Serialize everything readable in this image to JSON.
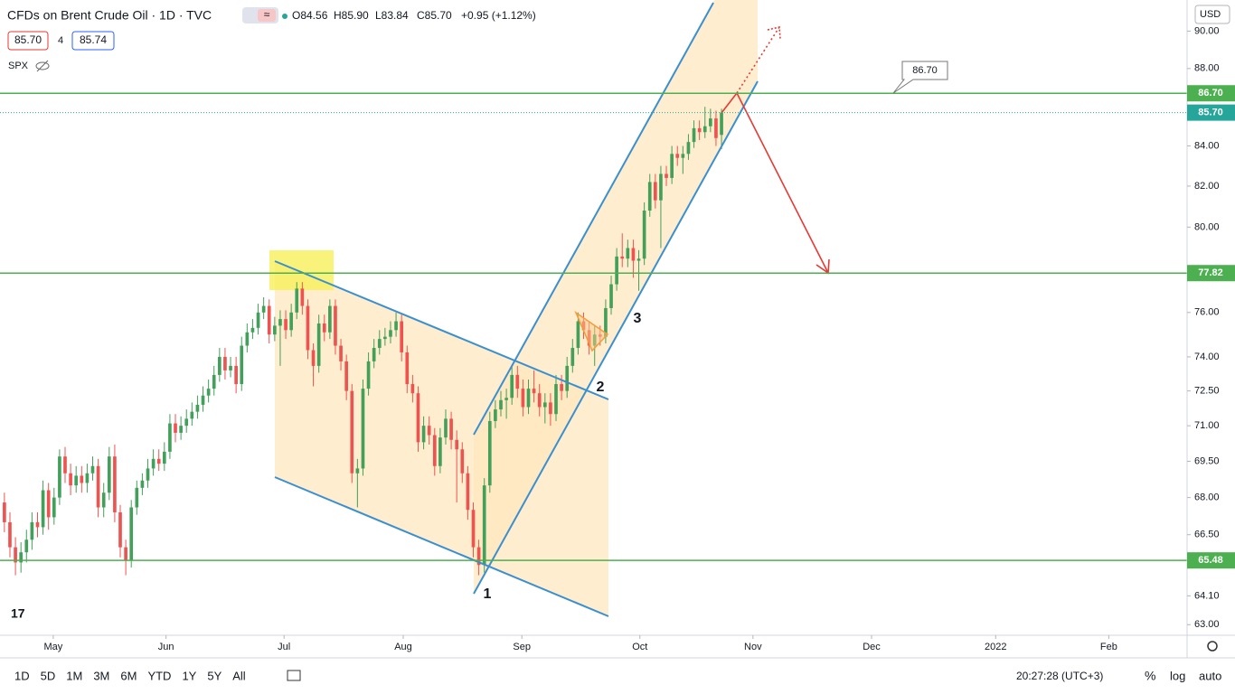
{
  "header": {
    "title": "CFDs on Brent Crude Oil · 1D · TVC",
    "open": "O84.56",
    "high": "H85.90",
    "low": "L83.84",
    "close": "C85.70",
    "change": "+0.95 (+1.12%)",
    "sell": "85.70",
    "spread": "4",
    "buy": "85.74",
    "compare": "SPX",
    "currency": "USD"
  },
  "toolbar": {
    "ranges": [
      "1D",
      "5D",
      "1M",
      "3M",
      "6M",
      "YTD",
      "1Y",
      "5Y",
      "All"
    ],
    "clock": "20:27:28 (UTC+3)",
    "percent": "%",
    "log": "log",
    "auto": "auto"
  },
  "chart_data": {
    "type": "candlestick",
    "log_scale": true,
    "up_color": "#43a05a",
    "down_color": "#ef5350",
    "open": [
      67.8,
      67.0,
      66.0,
      65.4,
      65.8,
      66.3,
      67.0,
      66.8,
      68.3,
      67.2,
      68.0,
      69.7,
      69.0,
      68.5,
      68.9,
      68.6,
      69.0,
      69.3,
      67.6,
      68.2,
      69.7,
      67.4,
      66.0,
      65.5,
      67.6,
      68.4,
      68.7,
      69.2,
      69.6,
      69.4,
      69.9,
      71.1,
      70.7,
      71.0,
      71.3,
      71.6,
      71.9,
      72.3,
      72.6,
      73.2,
      74.0,
      73.4,
      73.6,
      72.8,
      74.5,
      75.1,
      75.3,
      76.0,
      76.3,
      75.0,
      75.4,
      75.7,
      75.2,
      76.0,
      77.1,
      76.3,
      74.3,
      73.6,
      75.5,
      75.1,
      76.3,
      74.5,
      73.8,
      72.5,
      69.0,
      69.2,
      72.6,
      73.8,
      74.4,
      74.8,
      74.9,
      75.2,
      75.6,
      74.2,
      72.8,
      72.4,
      70.3,
      71.0,
      70.6,
      69.3,
      70.5,
      71.3,
      70.4,
      70.0,
      69.0,
      67.5,
      66.0,
      65.3,
      68.5,
      71.2,
      71.7,
      72.1,
      72.2,
      73.2,
      72.6,
      71.8,
      72.6,
      72.4,
      71.8,
      72.0,
      71.5,
      72.8,
      72.5,
      73.6,
      74.4,
      75.6,
      75.2,
      74.5,
      75.0,
      74.9,
      76.2,
      77.3,
      78.6,
      78.5,
      79.0,
      78.4,
      78.5,
      80.8,
      82.2,
      81.3,
      82.6,
      82.4,
      83.6,
      83.4,
      83.6,
      84.2,
      84.9,
      84.7,
      85.0,
      85.4,
      84.56
    ],
    "high": [
      68.2,
      67.4,
      66.4,
      66.2,
      66.7,
      67.4,
      67.4,
      68.7,
      68.6,
      68.4,
      70.0,
      70.1,
      69.4,
      69.3,
      69.3,
      69.4,
      69.7,
      69.6,
      68.6,
      70.1,
      70.2,
      67.7,
      66.3,
      67.9,
      68.7,
      69.0,
      69.6,
      70.0,
      70.0,
      70.3,
      71.5,
      71.5,
      71.4,
      71.7,
      72.0,
      72.3,
      72.7,
      73.0,
      73.6,
      74.4,
      74.4,
      74.0,
      74.0,
      74.9,
      75.5,
      75.7,
      76.4,
      76.7,
      76.6,
      75.8,
      76.1,
      76.1,
      76.4,
      77.4,
      77.4,
      76.6,
      74.6,
      75.9,
      75.9,
      76.6,
      76.6,
      74.8,
      74.1,
      72.8,
      69.6,
      73.0,
      74.2,
      74.8,
      75.2,
      75.3,
      75.6,
      76.0,
      75.9,
      74.5,
      73.2,
      72.7,
      71.4,
      71.4,
      70.9,
      70.9,
      71.7,
      71.6,
      70.8,
      70.3,
      69.3,
      67.8,
      66.3,
      68.8,
      71.6,
      72.1,
      72.5,
      72.6,
      73.6,
      73.6,
      73.0,
      73.0,
      73.4,
      72.8,
      72.4,
      72.4,
      73.2,
      73.2,
      74.0,
      74.8,
      76.0,
      76.0,
      75.6,
      75.4,
      75.4,
      76.6,
      77.7,
      79.0,
      79.7,
      79.4,
      79.4,
      78.9,
      81.2,
      82.6,
      82.6,
      83.0,
      83.0,
      84.0,
      84.0,
      84.0,
      84.6,
      85.3,
      85.3,
      86.0,
      85.9,
      85.8,
      85.9
    ],
    "low": [
      66.6,
      65.6,
      64.9,
      65.0,
      65.4,
      65.9,
      66.4,
      66.5,
      66.7,
      66.9,
      67.7,
      68.6,
      68.1,
      68.2,
      68.2,
      68.2,
      68.7,
      67.2,
      67.2,
      67.9,
      67.0,
      65.6,
      64.9,
      65.2,
      67.3,
      68.1,
      68.4,
      68.9,
      69.1,
      69.1,
      69.6,
      70.3,
      70.4,
      70.7,
      71.0,
      71.3,
      71.6,
      72.0,
      72.3,
      72.9,
      73.0,
      73.1,
      72.4,
      72.5,
      74.2,
      74.8,
      75.0,
      75.7,
      74.6,
      74.7,
      73.6,
      74.8,
      74.9,
      75.7,
      75.9,
      73.9,
      72.7,
      73.3,
      74.7,
      74.8,
      74.1,
      73.4,
      72.1,
      68.6,
      67.6,
      68.9,
      72.3,
      73.5,
      74.1,
      74.5,
      74.6,
      74.9,
      73.8,
      72.4,
      72.0,
      69.9,
      70.0,
      70.2,
      68.9,
      69.0,
      70.2,
      70.0,
      67.8,
      68.6,
      67.1,
      65.6,
      64.9,
      65.0,
      68.2,
      70.9,
      71.4,
      71.3,
      71.9,
      72.2,
      71.4,
      71.5,
      72.0,
      71.4,
      71.1,
      71.0,
      71.2,
      72.1,
      72.2,
      73.3,
      74.1,
      74.8,
      74.1,
      73.6,
      74.5,
      74.6,
      75.9,
      77.0,
      78.1,
      78.1,
      77.6,
      77.0,
      78.2,
      80.5,
      80.9,
      79.0,
      82.0,
      82.1,
      83.0,
      82.6,
      83.3,
      83.9,
      84.3,
      84.4,
      84.7,
      84.0,
      83.84
    ],
    "close": [
      67.0,
      66.0,
      65.4,
      65.8,
      66.3,
      67.0,
      66.8,
      68.3,
      67.2,
      68.0,
      69.7,
      69.0,
      68.5,
      68.9,
      68.6,
      69.0,
      69.3,
      67.6,
      68.2,
      69.7,
      67.4,
      66.0,
      65.5,
      67.6,
      68.4,
      68.7,
      69.2,
      69.6,
      69.4,
      69.9,
      71.1,
      70.7,
      71.0,
      71.3,
      71.6,
      71.9,
      72.3,
      72.6,
      73.2,
      74.0,
      73.4,
      73.6,
      72.8,
      74.5,
      75.1,
      75.3,
      76.0,
      76.3,
      75.0,
      75.4,
      75.7,
      75.2,
      76.0,
      77.1,
      76.3,
      74.3,
      73.6,
      75.5,
      75.1,
      76.3,
      74.5,
      73.8,
      72.5,
      69.0,
      69.2,
      72.6,
      73.8,
      74.4,
      74.8,
      74.9,
      75.2,
      75.6,
      74.2,
      72.8,
      72.4,
      70.3,
      71.0,
      70.6,
      69.3,
      70.5,
      71.3,
      70.4,
      70.0,
      69.0,
      67.5,
      66.0,
      65.3,
      68.5,
      71.2,
      71.7,
      72.1,
      72.2,
      73.2,
      72.6,
      71.8,
      72.6,
      72.4,
      71.8,
      72.0,
      71.5,
      72.8,
      72.5,
      73.6,
      74.4,
      75.6,
      75.2,
      74.5,
      75.0,
      74.9,
      76.2,
      77.3,
      78.6,
      78.5,
      79.0,
      78.4,
      78.5,
      80.8,
      82.2,
      81.3,
      82.6,
      82.4,
      83.6,
      83.4,
      83.6,
      84.2,
      84.9,
      84.7,
      85.0,
      85.4,
      84.4,
      85.7
    ],
    "xlim": [
      -0.8,
      214.4
    ],
    "xticks": [
      {
        "value": 8.85,
        "label": "May"
      },
      {
        "value": 29.3,
        "label": "Jun"
      },
      {
        "value": 50.7,
        "label": "Jul"
      },
      {
        "value": 72.3,
        "label": "Aug"
      },
      {
        "value": 93.8,
        "label": "Sep"
      },
      {
        "value": 115.2,
        "label": "Oct"
      },
      {
        "value": 135.7,
        "label": "Nov"
      },
      {
        "value": 157.2,
        "label": "Dec"
      },
      {
        "value": 179.7,
        "label": "2022"
      },
      {
        "value": 200.2,
        "label": "Feb"
      }
    ],
    "ylim": [
      62.6,
      91.7
    ],
    "yticks": [
      {
        "value": 90,
        "label": "90.00"
      },
      {
        "value": 88,
        "label": "88.00"
      },
      {
        "value": 84,
        "label": "84.00"
      },
      {
        "value": 82,
        "label": "82.00"
      },
      {
        "value": 80,
        "label": "80.00"
      },
      {
        "value": 76,
        "label": "76.00"
      },
      {
        "value": 74,
        "label": "74.00"
      },
      {
        "value": 72.5,
        "label": "72.50"
      },
      {
        "value": 71,
        "label": "71.00"
      },
      {
        "value": 69.5,
        "label": "69.50"
      },
      {
        "value": 68,
        "label": "68.00"
      },
      {
        "value": 66.5,
        "label": "66.50"
      },
      {
        "value": 64.1,
        "label": "64.10"
      },
      {
        "value": 63,
        "label": "63.00"
      }
    ],
    "grid": true,
    "levels": [
      {
        "value": 86.7,
        "label": "86.70",
        "color": "#4caf50"
      },
      {
        "value": 77.82,
        "label": "77.82",
        "color": "#4caf50"
      },
      {
        "value": 65.48,
        "label": "65.48",
        "color": "#4caf50"
      }
    ],
    "last_price": {
      "value": 85.7,
      "label": "85.70",
      "color": "#26a69a"
    },
    "callout": "86.70",
    "wave_labels": [
      "1",
      "2",
      "3"
    ]
  }
}
